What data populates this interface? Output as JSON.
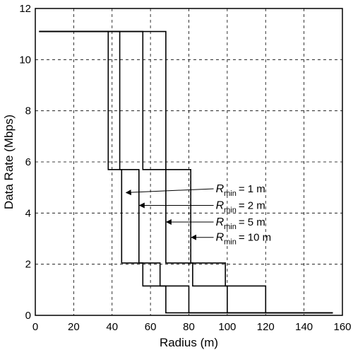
{
  "chart_data": {
    "type": "line",
    "xlabel": "Radius (m)",
    "ylabel": "Data Rate (Mbps)",
    "xlim": [
      0,
      160
    ],
    "ylim": [
      0,
      12
    ],
    "xticks": [
      0,
      20,
      40,
      60,
      80,
      100,
      120,
      140,
      160
    ],
    "yticks": [
      0,
      2,
      4,
      6,
      8,
      10,
      12
    ],
    "grid": true,
    "series": [
      {
        "name": "Rmin = 1 m",
        "points": [
          [
            2,
            11.1
          ],
          [
            38,
            11.1
          ],
          [
            38,
            5.7
          ],
          [
            45,
            5.7
          ],
          [
            45,
            2.05
          ],
          [
            56,
            2.05
          ],
          [
            56,
            1.15
          ],
          [
            68,
            1.15
          ],
          [
            68,
            0.1
          ],
          [
            155,
            0.1
          ]
        ]
      },
      {
        "name": "Rmin = 2 m",
        "points": [
          [
            2,
            11.1
          ],
          [
            44,
            11.1
          ],
          [
            44,
            5.7
          ],
          [
            54,
            5.7
          ],
          [
            54,
            2.05
          ],
          [
            65,
            2.05
          ],
          [
            65,
            1.15
          ],
          [
            80,
            1.15
          ],
          [
            80,
            0.1
          ],
          [
            155,
            0.1
          ]
        ]
      },
      {
        "name": "Rmin = 5 m",
        "points": [
          [
            2,
            11.1
          ],
          [
            56,
            11.1
          ],
          [
            56,
            5.7
          ],
          [
            68,
            5.7
          ],
          [
            68,
            2.05
          ],
          [
            82,
            2.05
          ],
          [
            82,
            1.15
          ],
          [
            100,
            1.15
          ],
          [
            100,
            0.1
          ],
          [
            155,
            0.1
          ]
        ]
      },
      {
        "name": "Rmin = 10 m",
        "points": [
          [
            2,
            11.1
          ],
          [
            68,
            11.1
          ],
          [
            68,
            5.7
          ],
          [
            81,
            5.7
          ],
          [
            81,
            2.05
          ],
          [
            99,
            2.05
          ],
          [
            99,
            1.15
          ],
          [
            120,
            1.15
          ],
          [
            120,
            0.1
          ],
          [
            155,
            0.1
          ]
        ]
      }
    ],
    "annotations": [
      {
        "var": "R",
        "sub": "min",
        "text": "= 1 m",
        "label_x": 94,
        "label_y": 4.95,
        "arrow_to_x": 47,
        "arrow_to_y": 4.8
      },
      {
        "var": "R",
        "sub": "min",
        "text": "= 2 m",
        "label_x": 94,
        "label_y": 4.3,
        "arrow_to_x": 54,
        "arrow_to_y": 4.3
      },
      {
        "var": "R",
        "sub": "min",
        "text": "= 5 m",
        "label_x": 94,
        "label_y": 3.65,
        "arrow_to_x": 68,
        "arrow_to_y": 3.65
      },
      {
        "var": "R",
        "sub": "min",
        "text": "= 10 m",
        "label_x": 94,
        "label_y": 3.05,
        "arrow_to_x": 81,
        "arrow_to_y": 3.05
      }
    ]
  }
}
